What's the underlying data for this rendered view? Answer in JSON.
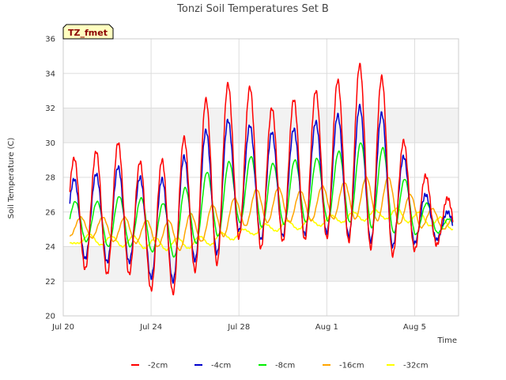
{
  "chart_data": {
    "type": "line",
    "title": "Tonzi Soil Temperatures Set B",
    "badge": "TZ_fmet",
    "xlabel": "Time",
    "ylabel": "Soil Temperature (C)",
    "ylim": [
      20,
      36
    ],
    "yticks": [
      20,
      22,
      24,
      26,
      28,
      30,
      32,
      34,
      36
    ],
    "xlim": [
      "Jul 20",
      "Aug 7"
    ],
    "xticks": [
      {
        "date": "Jul 20",
        "day": 0
      },
      {
        "date": "Jul 24",
        "day": 4
      },
      {
        "date": "Jul 28",
        "day": 8
      },
      {
        "date": "Aug 1",
        "day": 12
      },
      {
        "date": "Aug 5",
        "day": 16
      }
    ],
    "grid": true,
    "legend_position": "bottom",
    "colors": {
      "band": "#f2f2f2",
      "gridline": "#dddddd",
      "badge_fill": "#ffffc0"
    },
    "series": [
      {
        "name": "-2cm",
        "color": "#ff0000",
        "days": [
          0.5,
          1.5,
          2.5,
          3.5,
          4.5,
          5.5,
          6.5,
          7.5,
          8.5,
          9.5,
          10.5,
          11.5,
          12.5,
          13.5,
          14.5,
          15.5,
          16.5,
          17.5
        ],
        "max": [
          29.1,
          29.5,
          30.0,
          28.9,
          29.0,
          30.3,
          32.5,
          33.4,
          33.2,
          32.0,
          32.5,
          33.0,
          33.6,
          34.5,
          33.8,
          30.1,
          28.1,
          26.8
        ],
        "min": [
          23.8,
          22.7,
          22.4,
          22.4,
          21.5,
          21.3,
          22.6,
          23.0,
          24.5,
          23.9,
          24.3,
          24.4,
          24.5,
          24.3,
          23.9,
          23.5,
          23.8,
          24.1
        ]
      },
      {
        "name": "-4cm",
        "color": "#0000cc",
        "days": [
          0.5,
          1.5,
          2.5,
          3.5,
          4.5,
          5.5,
          6.5,
          7.5,
          8.5,
          9.5,
          10.5,
          11.5,
          12.5,
          13.5,
          14.5,
          15.5,
          16.5,
          17.5
        ],
        "max": [
          27.9,
          28.2,
          28.6,
          28.0,
          27.9,
          29.2,
          30.7,
          31.3,
          31.0,
          30.6,
          30.8,
          31.2,
          31.6,
          32.1,
          31.7,
          29.2,
          27.0,
          26.0
        ],
        "min": [
          24.0,
          23.3,
          23.1,
          23.1,
          22.2,
          22.0,
          23.2,
          23.6,
          24.9,
          24.4,
          24.6,
          24.7,
          24.8,
          24.6,
          24.3,
          24.0,
          24.2,
          24.4
        ]
      },
      {
        "name": "-8cm",
        "color": "#00ee00",
        "days": [
          0.55,
          1.55,
          2.55,
          3.55,
          4.55,
          5.55,
          6.55,
          7.55,
          8.55,
          9.55,
          10.55,
          11.55,
          12.55,
          13.55,
          14.55,
          15.55,
          16.55,
          17.55
        ],
        "max": [
          26.6,
          26.6,
          26.9,
          26.8,
          26.5,
          27.4,
          28.3,
          28.9,
          29.2,
          28.8,
          29.0,
          29.1,
          29.5,
          30.0,
          29.7,
          27.9,
          26.5,
          25.6
        ],
        "min": [
          24.6,
          24.3,
          24.0,
          24.0,
          23.7,
          23.4,
          24.2,
          24.6,
          25.4,
          25.1,
          25.3,
          25.4,
          25.5,
          25.4,
          25.1,
          24.8,
          24.7,
          24.8
        ]
      },
      {
        "name": "-16cm",
        "color": "#ffa500",
        "days": [
          0.8,
          1.8,
          2.8,
          3.8,
          4.8,
          5.8,
          6.8,
          7.8,
          8.8,
          9.8,
          10.8,
          11.8,
          12.8,
          13.8,
          14.8,
          15.8,
          16.8,
          17.8
        ],
        "max": [
          25.7,
          25.7,
          25.7,
          25.5,
          25.5,
          25.9,
          26.4,
          26.8,
          27.3,
          27.4,
          27.2,
          27.5,
          27.7,
          28.0,
          28.0,
          27.0,
          26.2,
          25.7
        ],
        "min": [
          24.6,
          24.5,
          24.3,
          24.2,
          24.0,
          23.8,
          24.3,
          24.6,
          25.2,
          25.4,
          25.4,
          25.5,
          25.6,
          25.6,
          25.5,
          25.3,
          25.1,
          25.0
        ]
      },
      {
        "name": "-32cm",
        "color": "#ffff00",
        "days": [
          1.2,
          2.2,
          3.2,
          4.2,
          5.2,
          6.2,
          7.2,
          8.2,
          9.2,
          10.2,
          11.2,
          12.2,
          13.2,
          14.2,
          15.2,
          16.2,
          17.2,
          18.2
        ],
        "max": [
          24.7,
          24.6,
          24.6,
          24.5,
          24.5,
          24.6,
          24.8,
          25.0,
          25.3,
          25.5,
          25.6,
          25.8,
          26.0,
          26.1,
          26.2,
          26.0,
          25.7,
          25.5
        ],
        "min": [
          24.2,
          24.1,
          24.0,
          23.9,
          23.8,
          23.9,
          24.1,
          24.4,
          24.7,
          24.9,
          25.0,
          25.2,
          25.4,
          25.5,
          25.6,
          25.4,
          25.2,
          25.0
        ]
      }
    ]
  }
}
